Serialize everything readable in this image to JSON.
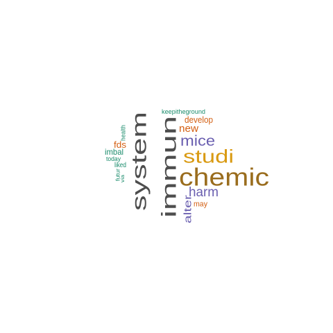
{
  "wordcloud": {
    "words": [
      {
        "id": "chemic",
        "text": "chemic",
        "color": "#9a6d1e",
        "orientation": "horizontal"
      },
      {
        "id": "immun",
        "text": "immun",
        "color": "#4d4d4d",
        "orientation": "vertical"
      },
      {
        "id": "system",
        "text": "system",
        "color": "#4d4d4d",
        "orientation": "vertical"
      },
      {
        "id": "studi",
        "text": "studi",
        "color": "#d99a12",
        "orientation": "horizontal"
      },
      {
        "id": "mice",
        "text": "mice",
        "color": "#6a5fb0",
        "orientation": "horizontal"
      },
      {
        "id": "harm",
        "text": "harm",
        "color": "#6a5fb0",
        "orientation": "horizontal"
      },
      {
        "id": "alter",
        "text": "alter",
        "color": "#6a5fb0",
        "orientation": "vertical"
      },
      {
        "id": "new",
        "text": "new",
        "color": "#d35f12",
        "orientation": "horizontal"
      },
      {
        "id": "develop",
        "text": "develop",
        "color": "#d35f12",
        "orientation": "horizontal"
      },
      {
        "id": "may",
        "text": "may",
        "color": "#d35f12",
        "orientation": "horizontal"
      },
      {
        "id": "fds",
        "text": "fds",
        "color": "#d35f12",
        "orientation": "horizontal"
      },
      {
        "id": "keepitheground",
        "text": "keepitheground",
        "color": "#1b8c6c",
        "orientation": "horizontal"
      },
      {
        "id": "health",
        "text": "health",
        "color": "#1b8c6c",
        "orientation": "vertical"
      },
      {
        "id": "imbal",
        "text": "imbal",
        "color": "#1b8c6c",
        "orientation": "horizontal"
      },
      {
        "id": "today",
        "text": "today",
        "color": "#1b8c6c",
        "orientation": "horizontal"
      },
      {
        "id": "liked",
        "text": "liked",
        "color": "#1b8c6c",
        "orientation": "horizontal"
      },
      {
        "id": "futur",
        "text": "futur",
        "color": "#1b8c6c",
        "orientation": "vertical"
      },
      {
        "id": "via",
        "text": "via",
        "color": "#1b8c6c",
        "orientation": "vertical"
      }
    ]
  }
}
